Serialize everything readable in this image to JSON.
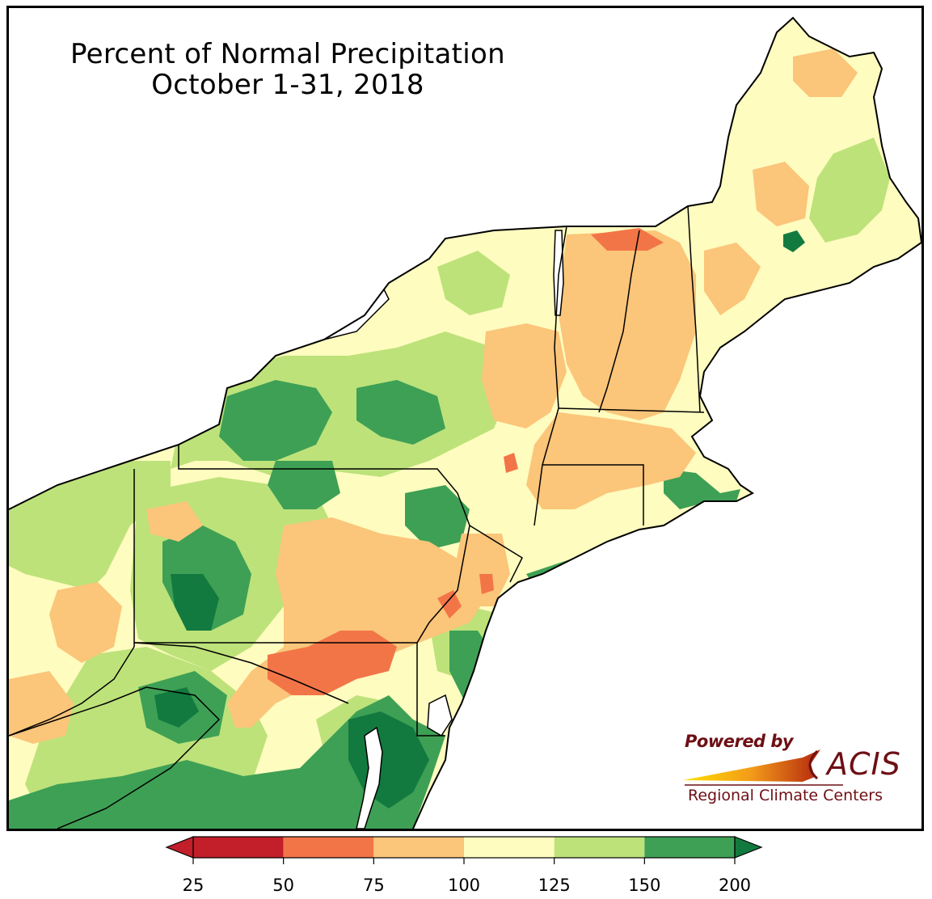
{
  "title": {
    "line1": "Percent of Normal Precipitation",
    "line2": "October 1-31, 2018"
  },
  "logo": {
    "powered_by": "Powered by",
    "acis": "ACIS",
    "regional": "Regional Climate Centers"
  },
  "legend": {
    "ticks": [
      "25",
      "50",
      "75",
      "100",
      "125",
      "150",
      "200"
    ],
    "bins": [
      {
        "label": "<25",
        "color": "#c21f2a"
      },
      {
        "label": "25-50",
        "color": "#c21f2a"
      },
      {
        "label": "50-75",
        "color": "#f27548"
      },
      {
        "label": "75-100",
        "color": "#fbc57a"
      },
      {
        "label": "100-125",
        "color": "#fefcbf"
      },
      {
        "label": "125-150",
        "color": "#bde27a"
      },
      {
        "label": "150-200",
        "color": "#3ea055"
      },
      {
        "label": ">200",
        "color": "#127a3f"
      }
    ]
  },
  "colors": {
    "deep_red": "#c21f2a",
    "orange_red": "#f27548",
    "light_orange": "#fbc57a",
    "pale_yellow": "#fefcbf",
    "light_green": "#bde27a",
    "green": "#3ea055",
    "dark_green": "#127a3f",
    "water": "#ffffff",
    "logo_text": "#6d0f14"
  }
}
